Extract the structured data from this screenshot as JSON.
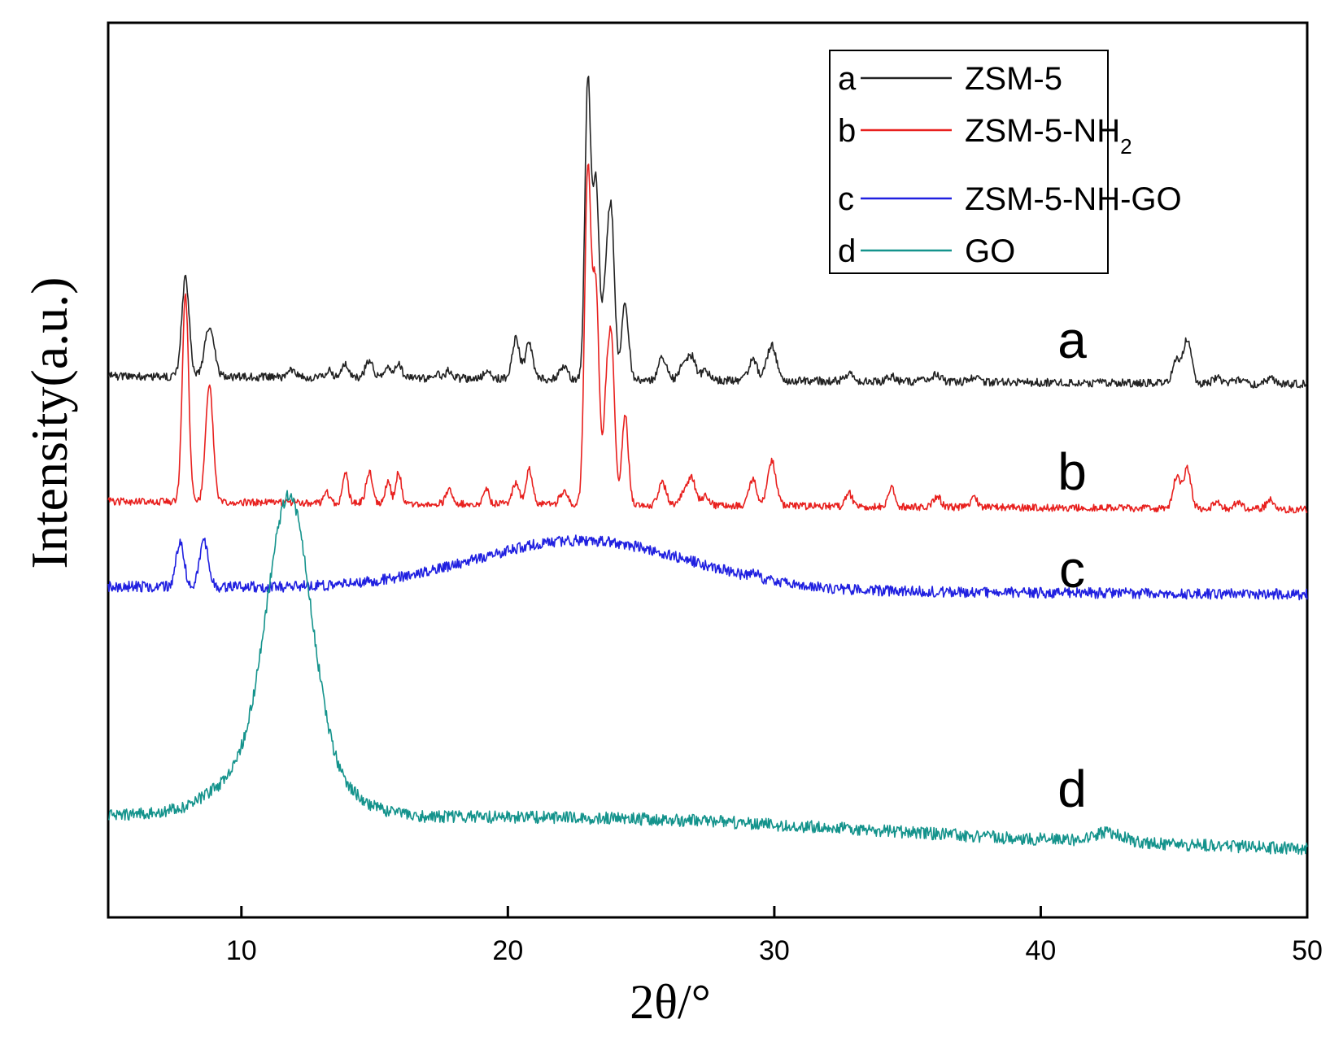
{
  "chart_data": {
    "type": "line",
    "title": "",
    "xlabel": "2θ/°",
    "ylabel": "Intensity(a.u.)",
    "xlim": [
      5,
      50
    ],
    "ylim": [
      0,
      100
    ],
    "xticks": [
      10,
      20,
      30,
      40,
      50
    ],
    "xtick_labels": [
      "10",
      "20",
      "30",
      "40",
      "50"
    ],
    "y_ticks_shown": false,
    "legend_position": "top-right",
    "series": [
      {
        "id": "a",
        "letter": "a",
        "name": "ZSM-5",
        "color": "#222222",
        "baseline": 60.5,
        "noise": 0.45,
        "slope": -0.02,
        "bumps": [],
        "peaks": [
          [
            7.9,
            11,
            0.14
          ],
          [
            8.8,
            5.5,
            0.18
          ],
          [
            11.9,
            0.8,
            0.12
          ],
          [
            13.3,
            0.8,
            0.12
          ],
          [
            13.9,
            1.5,
            0.12
          ],
          [
            14.8,
            2.0,
            0.14
          ],
          [
            15.5,
            1.5,
            0.12
          ],
          [
            15.9,
            1.5,
            0.12
          ],
          [
            17.3,
            0.6,
            0.12
          ],
          [
            17.8,
            0.9,
            0.12
          ],
          [
            19.2,
            0.9,
            0.12
          ],
          [
            20.3,
            4.5,
            0.14
          ],
          [
            20.8,
            4.0,
            0.14
          ],
          [
            22.1,
            1.5,
            0.14
          ],
          [
            23.0,
            33,
            0.11
          ],
          [
            23.3,
            22,
            0.12
          ],
          [
            23.7,
            11,
            0.14
          ],
          [
            23.9,
            15,
            0.12
          ],
          [
            24.4,
            8.5,
            0.13
          ],
          [
            25.8,
            2.5,
            0.15
          ],
          [
            26.6,
            1.8,
            0.15
          ],
          [
            26.9,
            2.5,
            0.15
          ],
          [
            27.4,
            1.0,
            0.15
          ],
          [
            29.2,
            2.5,
            0.15
          ],
          [
            29.9,
            4.0,
            0.18
          ],
          [
            32.8,
            0.8,
            0.15
          ],
          [
            34.4,
            0.6,
            0.15
          ],
          [
            35.6,
            0.5,
            0.15
          ],
          [
            36.1,
            0.8,
            0.15
          ],
          [
            37.5,
            0.6,
            0.15
          ],
          [
            45.1,
            2.5,
            0.15
          ],
          [
            45.5,
            5.0,
            0.15
          ],
          [
            46.6,
            0.6,
            0.15
          ],
          [
            47.4,
            0.5,
            0.15
          ],
          [
            48.6,
            0.6,
            0.15
          ]
        ]
      },
      {
        "id": "b",
        "letter": "b",
        "name": "ZSM-5-NH2",
        "name_main": "ZSM-5-NH",
        "name_sub": "2",
        "color": "#e8201e",
        "baseline": 46.5,
        "noise": 0.4,
        "slope": -0.02,
        "bumps": [],
        "peaks": [
          [
            7.9,
            23,
            0.12
          ],
          [
            8.8,
            13,
            0.14
          ],
          [
            13.2,
            1.2,
            0.1
          ],
          [
            13.9,
            3.5,
            0.1
          ],
          [
            14.8,
            3.5,
            0.12
          ],
          [
            15.5,
            2.5,
            0.1
          ],
          [
            15.9,
            3.5,
            0.1
          ],
          [
            17.8,
            1.8,
            0.12
          ],
          [
            19.2,
            1.5,
            0.1
          ],
          [
            20.3,
            2.5,
            0.12
          ],
          [
            20.8,
            4.0,
            0.12
          ],
          [
            22.1,
            1.5,
            0.14
          ],
          [
            23.0,
            37,
            0.12
          ],
          [
            23.3,
            24,
            0.12
          ],
          [
            23.7,
            11,
            0.12
          ],
          [
            23.9,
            16,
            0.12
          ],
          [
            24.4,
            10,
            0.12
          ],
          [
            25.8,
            2.5,
            0.14
          ],
          [
            26.6,
            1.5,
            0.14
          ],
          [
            26.9,
            3.0,
            0.14
          ],
          [
            27.4,
            1.0,
            0.14
          ],
          [
            29.2,
            3.0,
            0.14
          ],
          [
            29.9,
            5.0,
            0.16
          ],
          [
            32.8,
            1.5,
            0.12
          ],
          [
            34.4,
            2.0,
            0.12
          ],
          [
            36.1,
            1.2,
            0.14
          ],
          [
            37.5,
            1.0,
            0.14
          ],
          [
            45.1,
            3.5,
            0.14
          ],
          [
            45.5,
            4.5,
            0.14
          ],
          [
            46.6,
            0.8,
            0.14
          ],
          [
            47.4,
            0.8,
            0.14
          ],
          [
            48.6,
            1.0,
            0.14
          ]
        ]
      },
      {
        "id": "c",
        "letter": "c",
        "name": "ZSM-5-NH-GO",
        "color": "#2020e0",
        "baseline": 37.0,
        "noise": 0.6,
        "slope": -0.02,
        "bumps": [
          [
            22.8,
            5.5,
            4.0
          ]
        ],
        "peaks": [
          [
            7.7,
            5.0,
            0.15
          ],
          [
            8.6,
            5.0,
            0.16
          ],
          [
            29.3,
            0.5,
            0.15
          ]
        ]
      },
      {
        "id": "d",
        "letter": "d",
        "name": "GO",
        "color": "#14938c",
        "baseline": 11.5,
        "noise": 0.7,
        "slope": -0.085,
        "bumps": [
          [
            11.8,
            28,
            0.8
          ],
          [
            11.5,
            8,
            1.8
          ],
          [
            25.0,
            1.2,
            8.0
          ],
          [
            42.5,
            1.0,
            0.6
          ]
        ],
        "peaks": []
      }
    ],
    "curve_labels": [
      "a",
      "b",
      "c",
      "d"
    ]
  }
}
